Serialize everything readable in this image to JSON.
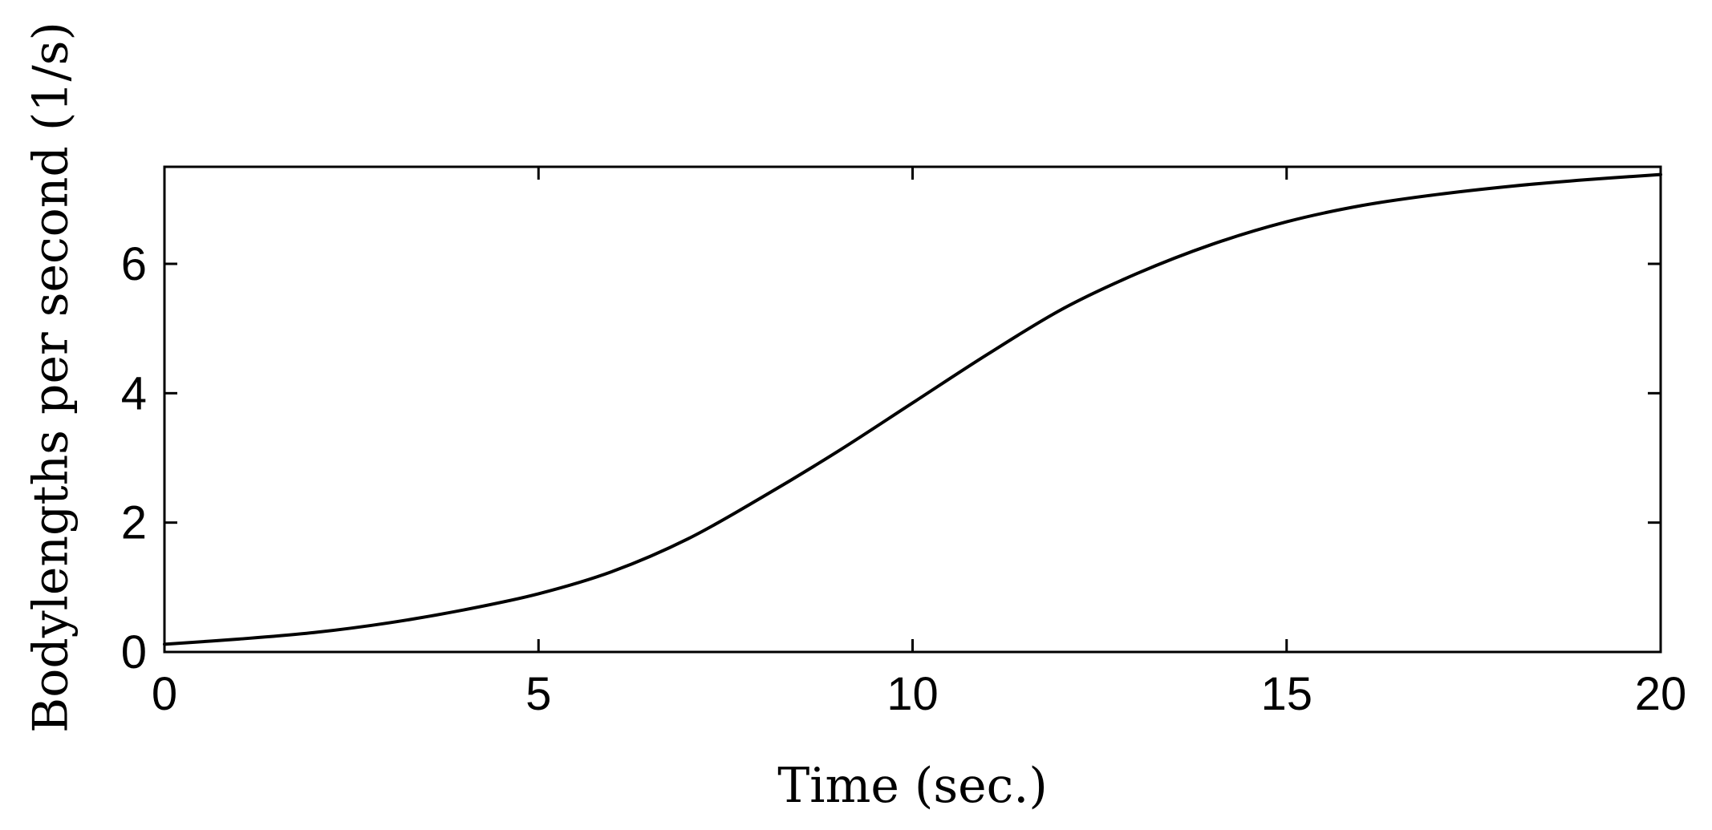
{
  "chart_data": {
    "type": "line",
    "title": "",
    "xlabel": "Time (sec.)",
    "ylabel": "Bodylengths per second (1/s)",
    "xlim": [
      0,
      20
    ],
    "ylim": [
      0,
      7.5
    ],
    "xticks": [
      0,
      5,
      10,
      15,
      20
    ],
    "yticks": [
      0,
      2,
      4,
      6
    ],
    "xtick_labels": [
      "0",
      "5",
      "10",
      "15",
      "20"
    ],
    "ytick_labels": [
      "0",
      "2",
      "4",
      "6"
    ],
    "grid": false,
    "legend": "none",
    "line_color": "#000000",
    "series": [
      {
        "x": [
          0,
          1,
          2,
          3,
          4,
          5,
          6,
          7,
          8,
          9,
          10,
          11,
          12,
          13,
          14,
          15,
          16,
          17,
          18,
          19,
          20
        ],
        "values": [
          0.12,
          0.2,
          0.3,
          0.45,
          0.65,
          0.9,
          1.25,
          1.75,
          2.4,
          3.1,
          3.85,
          4.6,
          5.3,
          5.85,
          6.3,
          6.65,
          6.9,
          7.07,
          7.2,
          7.3,
          7.38
        ]
      }
    ]
  }
}
